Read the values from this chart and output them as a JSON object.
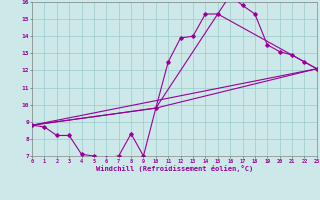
{
  "xlabel": "Windchill (Refroidissement éolien,°C)",
  "bg_color": "#cce8e8",
  "line_color": "#990099",
  "grid_color": "#99cccc",
  "x_min": 0,
  "x_max": 23,
  "y_min": 7,
  "y_max": 16,
  "x_ticks": [
    0,
    1,
    2,
    3,
    4,
    5,
    6,
    7,
    8,
    9,
    10,
    11,
    12,
    13,
    14,
    15,
    16,
    17,
    18,
    19,
    20,
    21,
    22,
    23
  ],
  "y_ticks": [
    7,
    8,
    9,
    10,
    11,
    12,
    13,
    14,
    15,
    16
  ],
  "line1_x": [
    0,
    1,
    2,
    3,
    4,
    5,
    6,
    7,
    8,
    9,
    10,
    11,
    12,
    13,
    14,
    15,
    16,
    17,
    18,
    19,
    20,
    21,
    22,
    23
  ],
  "line1_y": [
    8.8,
    8.7,
    8.2,
    8.2,
    7.1,
    7.0,
    6.9,
    7.0,
    8.3,
    7.0,
    9.8,
    12.5,
    13.9,
    14.0,
    15.3,
    15.3,
    16.4,
    15.8,
    15.3,
    13.5,
    13.1,
    12.9,
    12.5,
    12.1
  ],
  "line2_x": [
    0,
    23
  ],
  "line2_y": [
    8.8,
    12.1
  ],
  "line3_x": [
    0,
    10,
    23
  ],
  "line3_y": [
    8.8,
    9.8,
    12.1
  ],
  "line4_x": [
    0,
    10,
    15,
    23
  ],
  "line4_y": [
    8.8,
    9.8,
    15.3,
    12.1
  ]
}
